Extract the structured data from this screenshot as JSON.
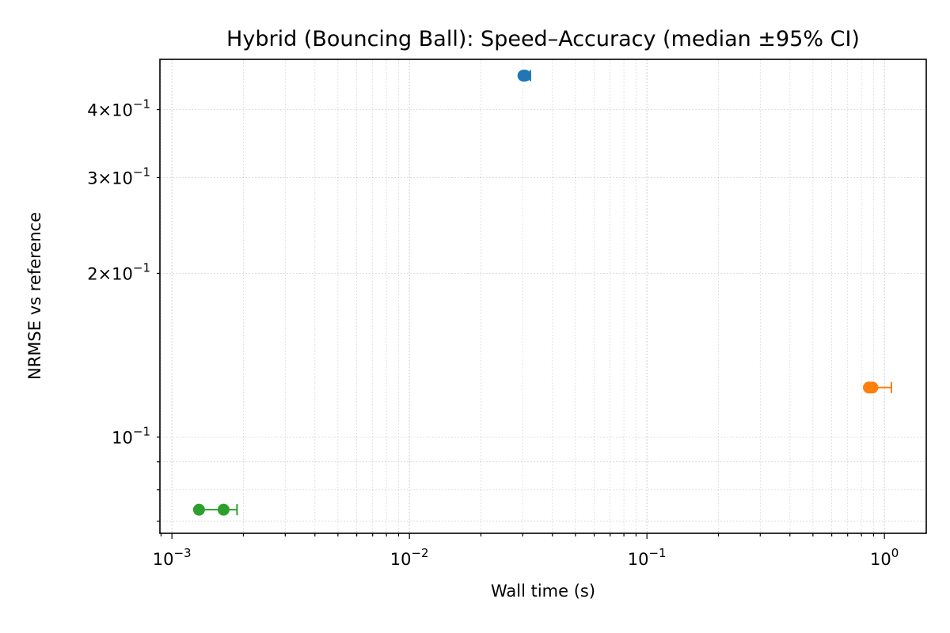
{
  "chart_data": {
    "type": "scatter",
    "title": "Hybrid (Bouncing Ball): Speed–Accuracy (median ±95% CI)",
    "xlabel": "Wall time (s)",
    "ylabel": "NRMSE vs reference",
    "xscale": "log",
    "yscale": "log",
    "xlim": [
      0.00089,
      1.5
    ],
    "ylim": [
      0.0665,
      0.495
    ],
    "grid": true,
    "x_ticks": [
      {
        "value": 0.001,
        "base": "10",
        "exp": "−3"
      },
      {
        "value": 0.01,
        "base": "10",
        "exp": "−2"
      },
      {
        "value": 0.1,
        "base": "10",
        "exp": "−1"
      },
      {
        "value": 1,
        "base": "10",
        "exp": "0"
      }
    ],
    "y_ticks": [
      {
        "value": 0.1,
        "mant": "",
        "base": "10",
        "exp": "−1"
      },
      {
        "value": 0.2,
        "mant": "2",
        "base": "10",
        "exp": "−1"
      },
      {
        "value": 0.3,
        "mant": "3",
        "base": "10",
        "exp": "−1"
      },
      {
        "value": 0.4,
        "mant": "4",
        "base": "10",
        "exp": "−1"
      }
    ],
    "series": [
      {
        "color": "#1f77b4",
        "points": [
          {
            "x": 0.0302,
            "y": 0.462
          },
          {
            "x": 0.0307,
            "y": 0.462
          }
        ],
        "ci": {
          "y": 0.462,
          "low": 0.0302,
          "high": 0.0323
        }
      },
      {
        "color": "#ff7f0e",
        "points": [
          {
            "x": 0.86,
            "y": 0.1233
          },
          {
            "x": 0.89,
            "y": 0.1233
          }
        ],
        "ci": {
          "y": 0.1233,
          "low": 0.86,
          "high": 1.07
        }
      },
      {
        "color": "#2ca02c",
        "points": [
          {
            "x": 0.0013,
            "y": 0.0735
          },
          {
            "x": 0.00165,
            "y": 0.0735
          }
        ],
        "ci": {
          "y": 0.0735,
          "low": 0.0013,
          "high": 0.00188
        }
      }
    ]
  }
}
